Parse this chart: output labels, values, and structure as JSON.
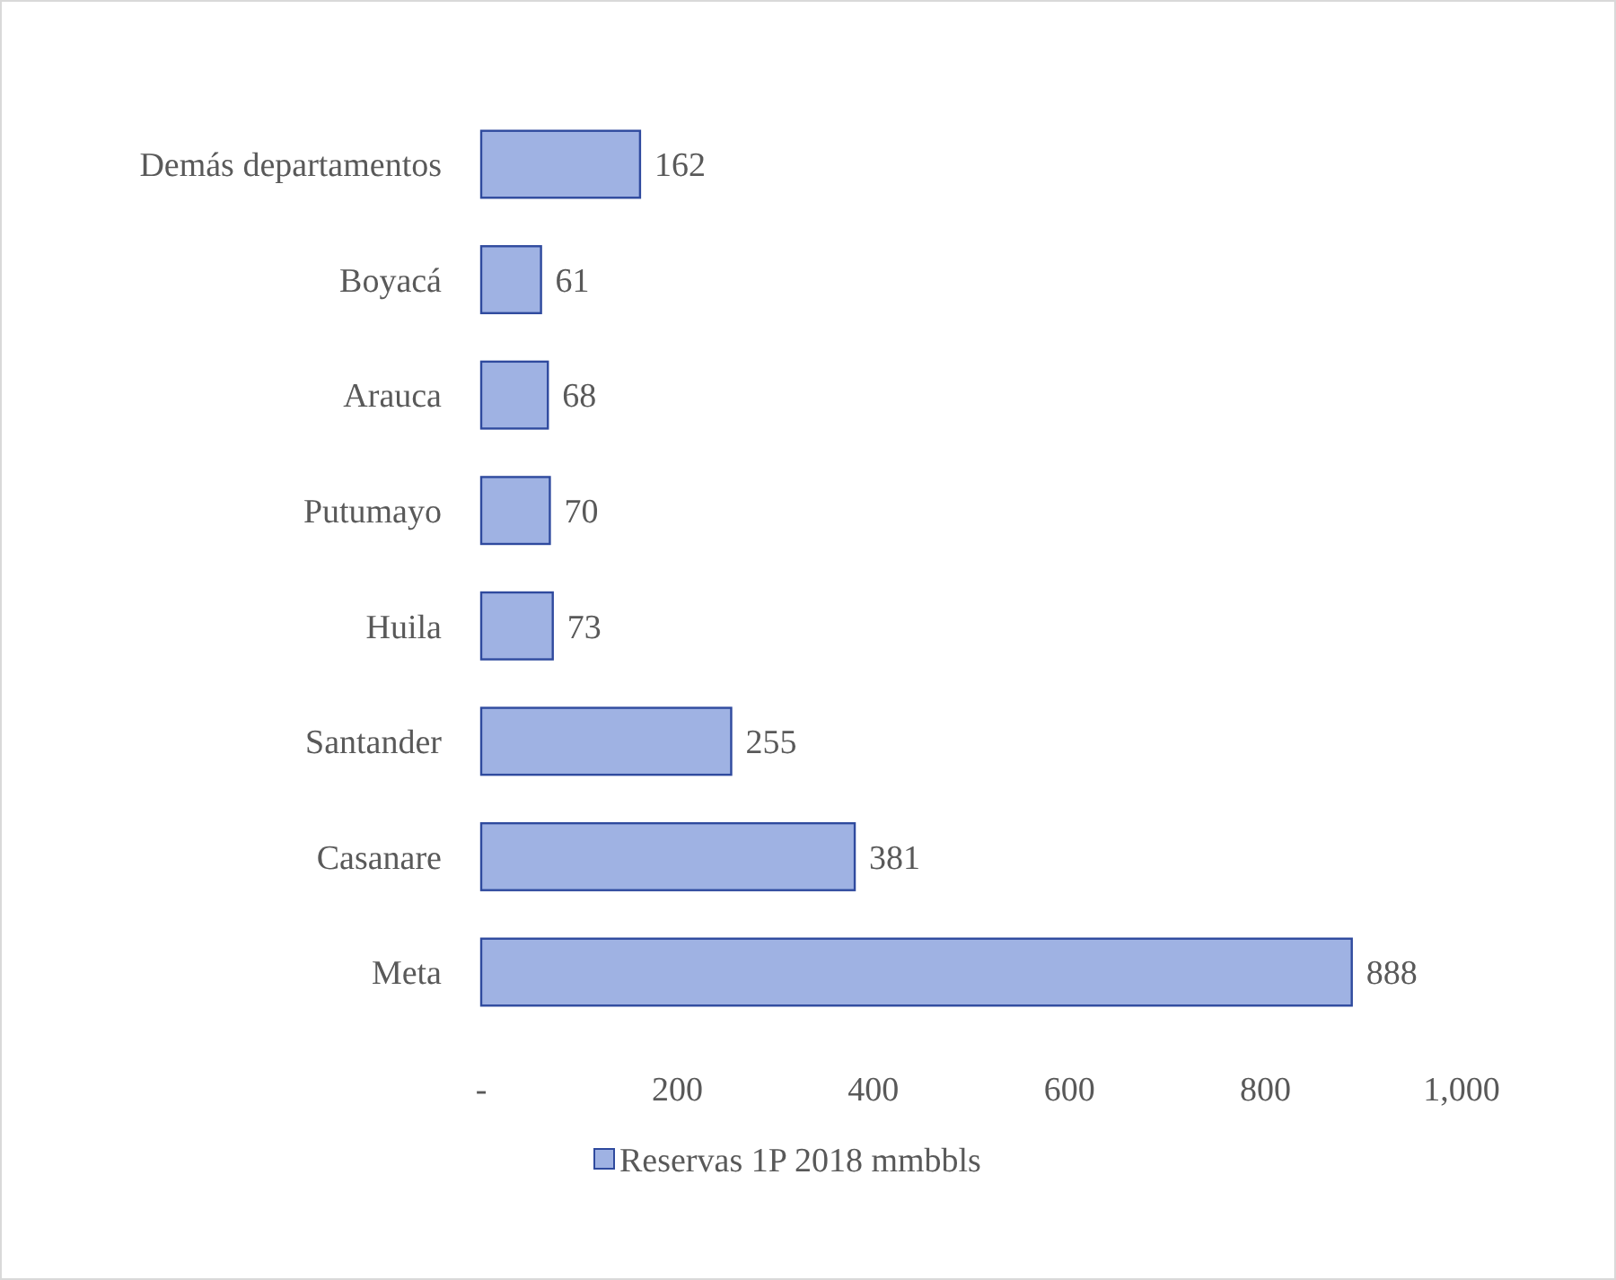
{
  "chart_data": {
    "type": "bar",
    "orientation": "horizontal",
    "categories": [
      "Demás departamentos",
      "Boyacá",
      "Arauca",
      "Putumayo",
      "Huila",
      "Santander",
      "Casanare",
      "Meta"
    ],
    "series": [
      {
        "name": "Reservas 1P 2018 mmbbls",
        "color": "#9fb2e3",
        "values": [
          162,
          61,
          68,
          70,
          73,
          255,
          381,
          888
        ]
      }
    ],
    "xlim": [
      0,
      1000
    ],
    "xticks": [
      {
        "value": 0,
        "label": "-"
      },
      200,
      400,
      600,
      800,
      {
        "value": 1000,
        "label": "1,000"
      }
    ],
    "data_labels": true,
    "legend": "bottom",
    "grid": false
  }
}
